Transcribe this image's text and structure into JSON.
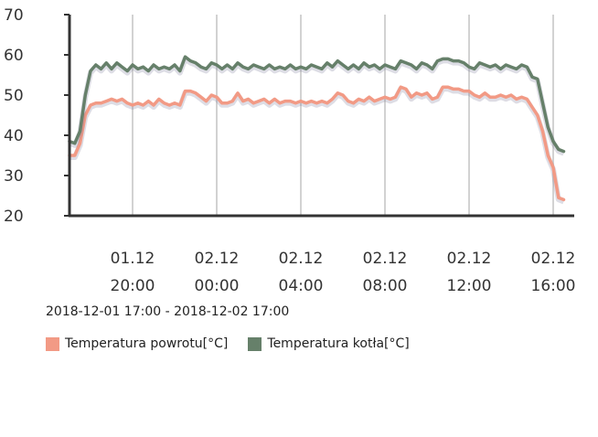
{
  "chart_data": {
    "type": "line",
    "ylim": [
      20,
      70
    ],
    "y_ticks": [
      "20",
      "30",
      "40",
      "50",
      "60",
      "70"
    ],
    "x_ticks": [
      {
        "date": "01.12",
        "time": "20:00",
        "x": 3
      },
      {
        "date": "02.12",
        "time": "00:00",
        "x": 7
      },
      {
        "date": "02.12",
        "time": "04:00",
        "x": 11
      },
      {
        "date": "02.12",
        "time": "08:00",
        "x": 15
      },
      {
        "date": "02.12",
        "time": "12:00",
        "x": 19
      },
      {
        "date": "02.12",
        "time": "16:00",
        "x": 23
      }
    ],
    "x_range": [
      0,
      24
    ],
    "x_unit": "hours after 2018-12-01 17:00",
    "grid": true,
    "range_label": "2018-12-01 17:00 - 2018-12-02 17:00",
    "legend_position": "bottom-left",
    "series": [
      {
        "name": "Temperatura powrotu[°C]",
        "color": "#f29a85",
        "points": [
          [
            0.0,
            35
          ],
          [
            0.25,
            35
          ],
          [
            0.5,
            38
          ],
          [
            0.75,
            45
          ],
          [
            1.0,
            47.5
          ],
          [
            1.25,
            48
          ],
          [
            1.5,
            48
          ],
          [
            1.75,
            48.5
          ],
          [
            2.0,
            49
          ],
          [
            2.25,
            48.5
          ],
          [
            2.5,
            49
          ],
          [
            2.75,
            48
          ],
          [
            3.0,
            47.5
          ],
          [
            3.25,
            48
          ],
          [
            3.5,
            47.5
          ],
          [
            3.75,
            48.5
          ],
          [
            4.0,
            47.5
          ],
          [
            4.25,
            49
          ],
          [
            4.5,
            48
          ],
          [
            4.75,
            47.5
          ],
          [
            5.0,
            48
          ],
          [
            5.25,
            47.5
          ],
          [
            5.5,
            51
          ],
          [
            5.75,
            51
          ],
          [
            6.0,
            50.5
          ],
          [
            6.25,
            49.5
          ],
          [
            6.5,
            48.5
          ],
          [
            6.75,
            50
          ],
          [
            7.0,
            49.5
          ],
          [
            7.25,
            48
          ],
          [
            7.5,
            48
          ],
          [
            7.75,
            48.5
          ],
          [
            8.0,
            50.5
          ],
          [
            8.25,
            48.5
          ],
          [
            8.5,
            49
          ],
          [
            8.75,
            48
          ],
          [
            9.0,
            48.5
          ],
          [
            9.25,
            49
          ],
          [
            9.5,
            48
          ],
          [
            9.75,
            49
          ],
          [
            10.0,
            48
          ],
          [
            10.25,
            48.5
          ],
          [
            10.5,
            48.5
          ],
          [
            10.75,
            48
          ],
          [
            11.0,
            48.5
          ],
          [
            11.25,
            48
          ],
          [
            11.5,
            48.5
          ],
          [
            11.75,
            48
          ],
          [
            12.0,
            48.5
          ],
          [
            12.25,
            48
          ],
          [
            12.5,
            49
          ],
          [
            12.75,
            50.5
          ],
          [
            13.0,
            50
          ],
          [
            13.25,
            48.5
          ],
          [
            13.5,
            48
          ],
          [
            13.75,
            49
          ],
          [
            14.0,
            48.5
          ],
          [
            14.25,
            49.5
          ],
          [
            14.5,
            48.5
          ],
          [
            14.75,
            49
          ],
          [
            15.0,
            49.5
          ],
          [
            15.25,
            49
          ],
          [
            15.5,
            49.5
          ],
          [
            15.75,
            52
          ],
          [
            16.0,
            51.5
          ],
          [
            16.25,
            49.5
          ],
          [
            16.5,
            50.5
          ],
          [
            16.75,
            50
          ],
          [
            17.0,
            50.5
          ],
          [
            17.25,
            49
          ],
          [
            17.5,
            49.5
          ],
          [
            17.75,
            52
          ],
          [
            18.0,
            52
          ],
          [
            18.25,
            51.5
          ],
          [
            18.5,
            51.5
          ],
          [
            18.75,
            51
          ],
          [
            19.0,
            51
          ],
          [
            19.25,
            50
          ],
          [
            19.5,
            49.5
          ],
          [
            19.75,
            50.5
          ],
          [
            20.0,
            49.5
          ],
          [
            20.25,
            49.5
          ],
          [
            20.5,
            50
          ],
          [
            20.75,
            49.5
          ],
          [
            21.0,
            50
          ],
          [
            21.25,
            49
          ],
          [
            21.5,
            49.5
          ],
          [
            21.75,
            49
          ],
          [
            22.0,
            47
          ],
          [
            22.25,
            45
          ],
          [
            22.5,
            41
          ],
          [
            22.75,
            35
          ],
          [
            23.0,
            32
          ],
          [
            23.25,
            24.5
          ],
          [
            23.5,
            24
          ]
        ]
      },
      {
        "name": "Temperatura kotła[°C]",
        "color": "#66806a",
        "points": [
          [
            0.0,
            38.5
          ],
          [
            0.25,
            38
          ],
          [
            0.5,
            41
          ],
          [
            0.75,
            50
          ],
          [
            1.0,
            56
          ],
          [
            1.25,
            57.5
          ],
          [
            1.5,
            56.5
          ],
          [
            1.75,
            58
          ],
          [
            2.0,
            56.5
          ],
          [
            2.25,
            58
          ],
          [
            2.5,
            57
          ],
          [
            2.75,
            56
          ],
          [
            3.0,
            57.5
          ],
          [
            3.25,
            56.5
          ],
          [
            3.5,
            57
          ],
          [
            3.75,
            56
          ],
          [
            4.0,
            57.5
          ],
          [
            4.25,
            56.5
          ],
          [
            4.5,
            57
          ],
          [
            4.75,
            56.5
          ],
          [
            5.0,
            57.5
          ],
          [
            5.25,
            56
          ],
          [
            5.5,
            59.5
          ],
          [
            5.75,
            58.5
          ],
          [
            6.0,
            58
          ],
          [
            6.25,
            57
          ],
          [
            6.5,
            56.5
          ],
          [
            6.75,
            58
          ],
          [
            7.0,
            57.5
          ],
          [
            7.25,
            56.5
          ],
          [
            7.5,
            57.5
          ],
          [
            7.75,
            56.5
          ],
          [
            8.0,
            58
          ],
          [
            8.25,
            57
          ],
          [
            8.5,
            56.5
          ],
          [
            8.75,
            57.5
          ],
          [
            9.0,
            57
          ],
          [
            9.25,
            56.5
          ],
          [
            9.5,
            57.5
          ],
          [
            9.75,
            56.5
          ],
          [
            10.0,
            57
          ],
          [
            10.25,
            56.5
          ],
          [
            10.5,
            57.5
          ],
          [
            10.75,
            56.5
          ],
          [
            11.0,
            57
          ],
          [
            11.25,
            56.5
          ],
          [
            11.5,
            57.5
          ],
          [
            11.75,
            57
          ],
          [
            12.0,
            56.5
          ],
          [
            12.25,
            58
          ],
          [
            12.5,
            57
          ],
          [
            12.75,
            58.5
          ],
          [
            13.0,
            57.5
          ],
          [
            13.25,
            56.5
          ],
          [
            13.5,
            57.5
          ],
          [
            13.75,
            56.5
          ],
          [
            14.0,
            58
          ],
          [
            14.25,
            57
          ],
          [
            14.5,
            57.5
          ],
          [
            14.75,
            56.5
          ],
          [
            15.0,
            57.5
          ],
          [
            15.25,
            57
          ],
          [
            15.5,
            56.5
          ],
          [
            15.75,
            58.5
          ],
          [
            16.0,
            58
          ],
          [
            16.25,
            57.5
          ],
          [
            16.5,
            56.5
          ],
          [
            16.75,
            58
          ],
          [
            17.0,
            57.5
          ],
          [
            17.25,
            56.5
          ],
          [
            17.5,
            58.5
          ],
          [
            17.75,
            59
          ],
          [
            18.0,
            59
          ],
          [
            18.25,
            58.5
          ],
          [
            18.5,
            58.5
          ],
          [
            18.75,
            58
          ],
          [
            19.0,
            57
          ],
          [
            19.25,
            56.5
          ],
          [
            19.5,
            58
          ],
          [
            19.75,
            57.5
          ],
          [
            20.0,
            57
          ],
          [
            20.25,
            57.5
          ],
          [
            20.5,
            56.5
          ],
          [
            20.75,
            57.5
          ],
          [
            21.0,
            57
          ],
          [
            21.25,
            56.5
          ],
          [
            21.5,
            57.5
          ],
          [
            21.75,
            57
          ],
          [
            22.0,
            54.5
          ],
          [
            22.25,
            54
          ],
          [
            22.5,
            48
          ],
          [
            22.75,
            42
          ],
          [
            23.0,
            38.5
          ],
          [
            23.25,
            36.5
          ],
          [
            23.5,
            36
          ]
        ]
      }
    ]
  }
}
